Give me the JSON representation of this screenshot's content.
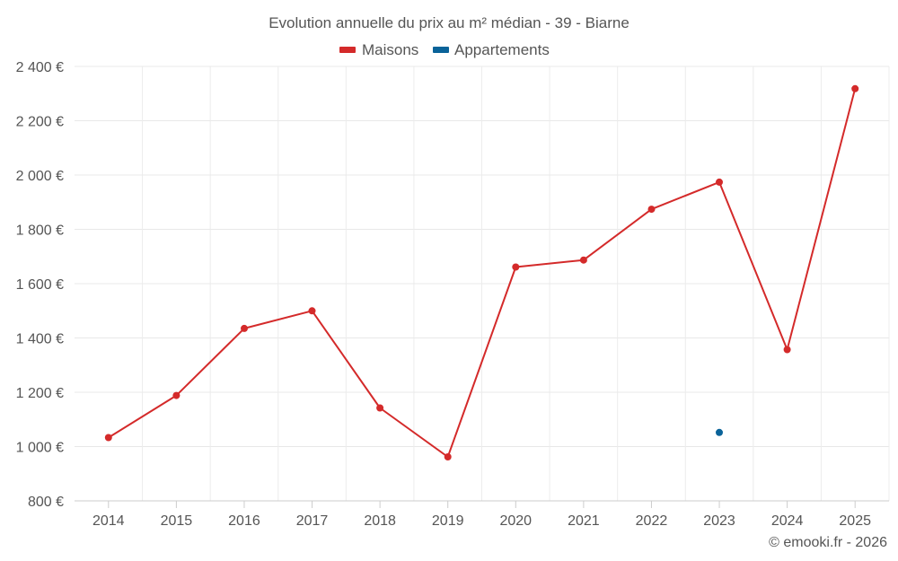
{
  "chart_data": {
    "type": "line",
    "title": "Evolution annuelle du prix au m² médian - 39 - Biarne",
    "categories": [
      "2014",
      "2015",
      "2016",
      "2017",
      "2018",
      "2019",
      "2020",
      "2021",
      "2022",
      "2023",
      "2024",
      "2025"
    ],
    "series": [
      {
        "name": "Maisons",
        "color": "#d42a2a",
        "values": [
          1033,
          1188,
          1435,
          1500,
          1142,
          962,
          1661,
          1687,
          1874,
          1974,
          1357,
          2318
        ]
      },
      {
        "name": "Appartements",
        "color": "#0a6399",
        "values": [
          null,
          null,
          null,
          null,
          null,
          null,
          null,
          null,
          null,
          1052,
          null,
          null
        ]
      }
    ],
    "y_ticks": [
      "800 €",
      "1 000 €",
      "1 200 €",
      "1 400 €",
      "1 600 €",
      "1 800 €",
      "2 000 €",
      "2 200 €",
      "2 400 €"
    ],
    "ylim": [
      800,
      2400
    ],
    "grid": true,
    "legend_position": "top-center",
    "credit": "© emooki.fr - 2026"
  }
}
